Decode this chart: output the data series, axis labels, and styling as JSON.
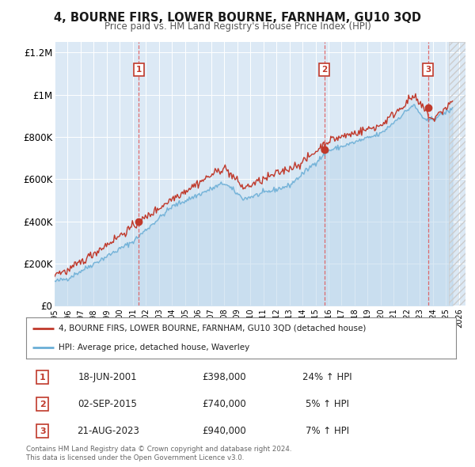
{
  "title": "4, BOURNE FIRS, LOWER BOURNE, FARNHAM, GU10 3QD",
  "subtitle": "Price paid vs. HM Land Registry's House Price Index (HPI)",
  "legend_label_red": "4, BOURNE FIRS, LOWER BOURNE, FARNHAM, GU10 3QD (detached house)",
  "legend_label_blue": "HPI: Average price, detached house, Waverley",
  "footer": "Contains HM Land Registry data © Crown copyright and database right 2024.\nThis data is licensed under the Open Government Licence v3.0.",
  "transactions": [
    {
      "num": 1,
      "date": "18-JUN-2001",
      "price": 398000,
      "hpi_pct": "24%",
      "x_year": 2001.46
    },
    {
      "num": 2,
      "date": "02-SEP-2015",
      "price": 740000,
      "hpi_pct": "5%",
      "x_year": 2015.67
    },
    {
      "num": 3,
      "date": "21-AUG-2023",
      "price": 940000,
      "hpi_pct": "7%",
      "x_year": 2023.64
    }
  ],
  "trans_prices": [
    398000,
    740000,
    940000
  ],
  "xlim": [
    1995.0,
    2026.5
  ],
  "ylim": [
    0,
    1250000
  ],
  "yticks": [
    0,
    200000,
    400000,
    600000,
    800000,
    1000000,
    1200000
  ],
  "ytick_labels": [
    "£0",
    "£200K",
    "£400K",
    "£600K",
    "£800K",
    "£1M",
    "£1.2M"
  ],
  "bg_color_plot": "#dce9f5",
  "bg_color_figure": "#ffffff",
  "grid_color": "#ffffff",
  "red_color": "#c0392b",
  "blue_color": "#6aaed6",
  "vline_color": "#e05555",
  "data_end_year": 2025.5,
  "hatch_start": 2025.25
}
